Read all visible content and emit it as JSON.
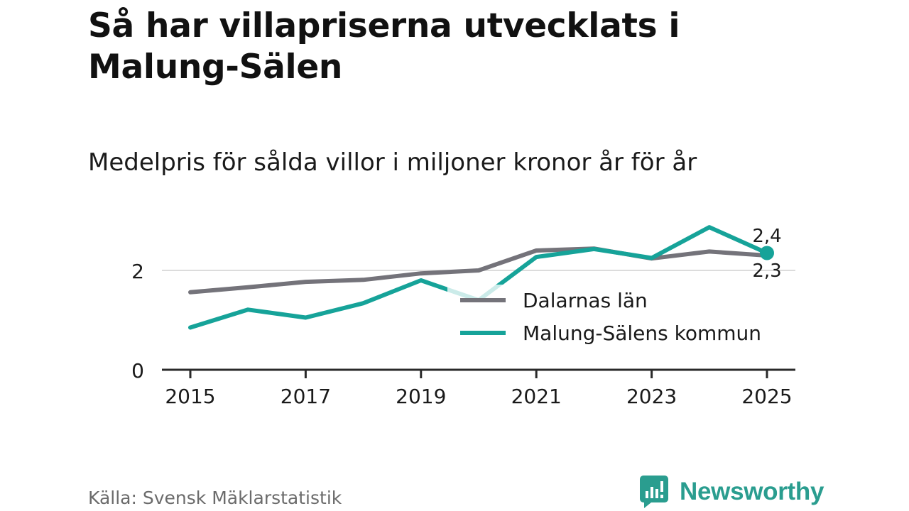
{
  "title": "Så har villapriserna utvecklats i Malung-Sälen",
  "subtitle": "Medelpris för sålda villor i miljoner kronor år för år",
  "source": "Källa: Svensk Mäklarstatistik",
  "brand": {
    "name": "Newsworthy",
    "color": "#2a9d8f"
  },
  "chart_data": {
    "type": "line",
    "title": "Så har villapriserna utvecklats i Malung-Sälen",
    "subtitle": "Medelpris för sålda villor i miljoner kronor år för år",
    "xlabel": "",
    "ylabel": "",
    "x": [
      2015,
      2016,
      2017,
      2018,
      2019,
      2020,
      2021,
      2022,
      2023,
      2024,
      2025
    ],
    "xticks": [
      2015,
      2017,
      2019,
      2021,
      2023,
      2025
    ],
    "xticklabels": [
      "2015",
      "2017",
      "2019",
      "2021",
      "2023",
      "2025"
    ],
    "yticks": [
      0,
      2
    ],
    "yticklabels": [
      "0",
      "2"
    ],
    "ylim": [
      0,
      2.9
    ],
    "xlim": [
      2014.5,
      2025.5
    ],
    "gridlines_y": [
      2
    ],
    "legend_position": "lower-right",
    "series": [
      {
        "name": "Dalarnas län",
        "color": "#74737a",
        "values": [
          1.56,
          1.66,
          1.77,
          1.81,
          1.94,
          2.0,
          2.4,
          2.44,
          2.24,
          2.38,
          2.3
        ],
        "end_label": "2,3"
      },
      {
        "name": "Malung-Sälens kommun",
        "color": "#16a399",
        "values": [
          0.85,
          1.21,
          1.05,
          1.34,
          1.8,
          1.4,
          2.27,
          2.43,
          2.25,
          2.87,
          2.35
        ],
        "end_label": "2,4"
      }
    ]
  }
}
